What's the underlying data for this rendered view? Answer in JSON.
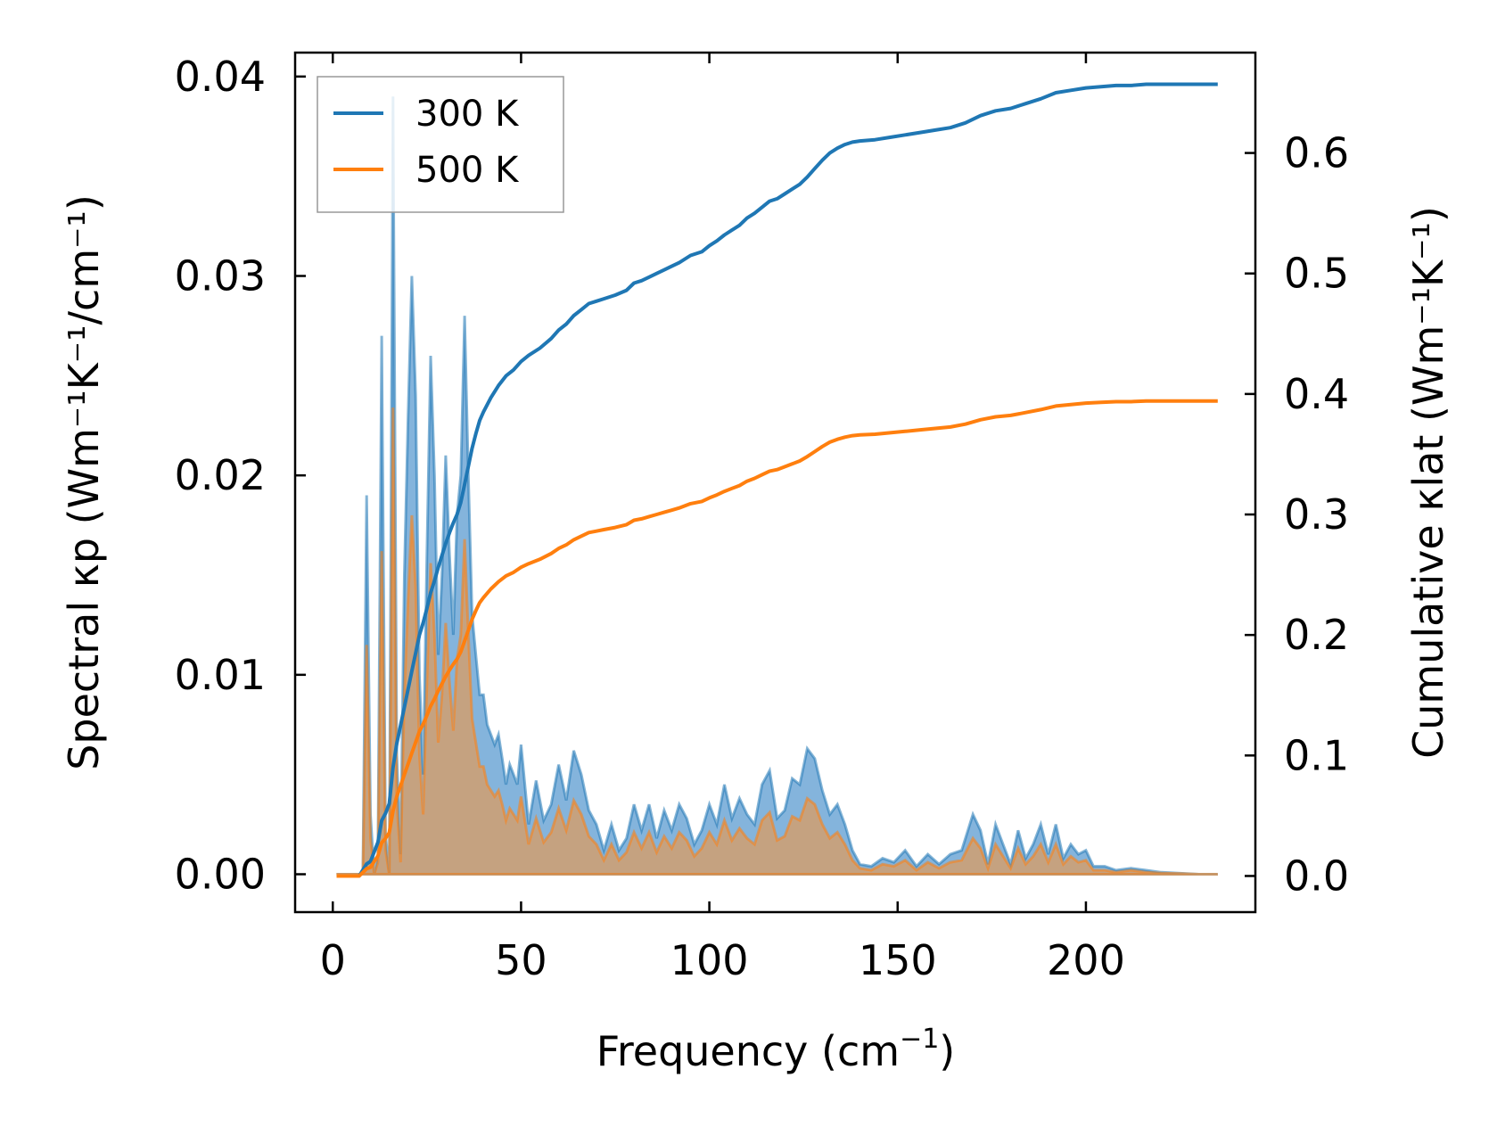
{
  "chart_data": {
    "type": "line",
    "title": "",
    "xlabel": "Frequency (cm⁻¹)",
    "xlabel_parts": {
      "main": "Frequency (cm",
      "sup": "−1",
      "tail": ")"
    },
    "ylabel_left": "Spectral κp (Wm⁻¹K⁻¹/cm⁻¹)",
    "ylabel_right": "Cumulative κlat (Wm⁻¹K⁻¹)",
    "xlim": [
      -10,
      245
    ],
    "ylim_left": [
      -0.0019,
      0.0412
    ],
    "ylim_right": [
      -0.03,
      0.6833
    ],
    "xticks": [
      0,
      50,
      100,
      150,
      200
    ],
    "xtick_labels": [
      "0",
      "50",
      "100",
      "150",
      "200"
    ],
    "yticks_left": [
      0.0,
      0.01,
      0.02,
      0.03,
      0.04
    ],
    "ytick_labels_left": [
      "0.00",
      "0.01",
      "0.02",
      "0.03",
      "0.04"
    ],
    "yticks_right": [
      0.0,
      0.1,
      0.2,
      0.3,
      0.4,
      0.5,
      0.6
    ],
    "ytick_labels_right": [
      "0.0",
      "0.1",
      "0.2",
      "0.3",
      "0.4",
      "0.5",
      "0.6"
    ],
    "legend_position": "top-left",
    "legend": [
      "300 K",
      "500 K"
    ],
    "series": [
      {
        "name": "300 K",
        "color": "#1f77b4",
        "fill_color": "#5b9bd0",
        "spectral": {
          "x": [
            1,
            7,
            8,
            9,
            10,
            11,
            12,
            13,
            14,
            15,
            16,
            17,
            18,
            19,
            20,
            21,
            22,
            23,
            24,
            25,
            26,
            27,
            28,
            29,
            30,
            31,
            32,
            33,
            34,
            35,
            36,
            37,
            38,
            39,
            40,
            41,
            42,
            43,
            44,
            45,
            46,
            47,
            48,
            49,
            50,
            52,
            54,
            56,
            58,
            60,
            62,
            64,
            66,
            68,
            70,
            72,
            74,
            76,
            78,
            80,
            82,
            84,
            86,
            88,
            90,
            92,
            94,
            96,
            98,
            100,
            102,
            104,
            106,
            108,
            110,
            112,
            114,
            116,
            118,
            120,
            122,
            124,
            126,
            128,
            130,
            132,
            134,
            136,
            138,
            140,
            143,
            146,
            149,
            152,
            155,
            158,
            161,
            164,
            167,
            170,
            172,
            174,
            176,
            178,
            180,
            182,
            184,
            186,
            188,
            190,
            192,
            194,
            196,
            198,
            200,
            202,
            205,
            208,
            212,
            216,
            220,
            225,
            230,
            235
          ],
          "y": [
            0,
            0,
            0,
            0.019,
            0.003,
            0.0,
            0.001,
            0.027,
            0.002,
            0.0,
            0.039,
            0.006,
            0.001,
            0.015,
            0.023,
            0.03,
            0.024,
            0.01,
            0.005,
            0.016,
            0.026,
            0.02,
            0.011,
            0.015,
            0.021,
            0.016,
            0.012,
            0.018,
            0.02,
            0.028,
            0.02,
            0.013,
            0.011,
            0.009,
            0.009,
            0.0075,
            0.007,
            0.0065,
            0.007,
            0.0058,
            0.0045,
            0.0055,
            0.005,
            0.0045,
            0.0065,
            0.0025,
            0.0047,
            0.0027,
            0.0035,
            0.0055,
            0.0037,
            0.0062,
            0.005,
            0.0032,
            0.0025,
            0.0012,
            0.0025,
            0.0012,
            0.0018,
            0.0035,
            0.0022,
            0.0035,
            0.0018,
            0.0032,
            0.0022,
            0.0035,
            0.0028,
            0.0015,
            0.0022,
            0.0035,
            0.0025,
            0.0045,
            0.0028,
            0.0038,
            0.003,
            0.0025,
            0.0045,
            0.0052,
            0.0028,
            0.0032,
            0.0048,
            0.0045,
            0.0063,
            0.0058,
            0.0042,
            0.003,
            0.0035,
            0.0025,
            0.0012,
            0.0005,
            0.0004,
            0.0008,
            0.0006,
            0.0012,
            0.0004,
            0.001,
            0.0005,
            0.001,
            0.0012,
            0.003,
            0.0022,
            0.0005,
            0.0025,
            0.0015,
            0.0005,
            0.0022,
            0.0008,
            0.0015,
            0.0025,
            0.001,
            0.0025,
            0.0008,
            0.0015,
            0.001,
            0.0012,
            0.0004,
            0.0004,
            0.0002,
            0.0003,
            0.0002,
            0.0001,
            5e-05,
            0,
            0
          ]
        },
        "cumulative": {
          "x": [
            1,
            7,
            8,
            9,
            10,
            11,
            12,
            13,
            14,
            15,
            16,
            17,
            18,
            19,
            20,
            21,
            22,
            23,
            24,
            25,
            26,
            27,
            28,
            29,
            30,
            31,
            32,
            33,
            34,
            35,
            36,
            37,
            38,
            39,
            40,
            42,
            44,
            46,
            48,
            50,
            52,
            55,
            58,
            60,
            62,
            64,
            66,
            68,
            70,
            72,
            75,
            78,
            80,
            82,
            84,
            86,
            88,
            90,
            92,
            95,
            98,
            100,
            102,
            104,
            106,
            108,
            110,
            112,
            114,
            116,
            118,
            120,
            122,
            124,
            126,
            128,
            130,
            132,
            134,
            136,
            138,
            140,
            144,
            148,
            152,
            156,
            160,
            164,
            168,
            172,
            176,
            180,
            184,
            188,
            192,
            196,
            200,
            204,
            208,
            212,
            216,
            220,
            225,
            230,
            235
          ],
          "y": [
            0,
            0,
            0.005,
            0.01,
            0.012,
            0.02,
            0.028,
            0.046,
            0.052,
            0.06,
            0.09,
            0.11,
            0.125,
            0.14,
            0.155,
            0.17,
            0.185,
            0.2,
            0.21,
            0.222,
            0.235,
            0.245,
            0.256,
            0.266,
            0.276,
            0.285,
            0.293,
            0.3,
            0.31,
            0.325,
            0.34,
            0.355,
            0.367,
            0.378,
            0.385,
            0.397,
            0.407,
            0.415,
            0.42,
            0.427,
            0.432,
            0.438,
            0.446,
            0.453,
            0.458,
            0.465,
            0.47,
            0.475,
            0.477,
            0.479,
            0.482,
            0.486,
            0.492,
            0.494,
            0.497,
            0.5,
            0.503,
            0.506,
            0.509,
            0.515,
            0.518,
            0.523,
            0.527,
            0.532,
            0.536,
            0.54,
            0.546,
            0.55,
            0.555,
            0.56,
            0.562,
            0.566,
            0.57,
            0.574,
            0.58,
            0.587,
            0.594,
            0.6,
            0.604,
            0.607,
            0.609,
            0.61,
            0.611,
            0.613,
            0.615,
            0.617,
            0.619,
            0.621,
            0.625,
            0.631,
            0.635,
            0.637,
            0.641,
            0.645,
            0.65,
            0.652,
            0.654,
            0.655,
            0.656,
            0.656,
            0.657,
            0.657,
            0.657,
            0.657,
            0.657
          ]
        }
      },
      {
        "name": "500 K",
        "color": "#ff7f0e",
        "fill_color": "#e8984f",
        "spectral": {
          "x": [
            1,
            7,
            8,
            9,
            10,
            11,
            12,
            13,
            14,
            15,
            16,
            17,
            18,
            19,
            20,
            21,
            22,
            23,
            24,
            25,
            26,
            27,
            28,
            29,
            30,
            31,
            32,
            33,
            34,
            35,
            36,
            37,
            38,
            39,
            40,
            41,
            42,
            43,
            44,
            45,
            46,
            47,
            48,
            49,
            50,
            52,
            54,
            56,
            58,
            60,
            62,
            64,
            66,
            68,
            70,
            72,
            74,
            76,
            78,
            80,
            82,
            84,
            86,
            88,
            90,
            92,
            94,
            96,
            98,
            100,
            102,
            104,
            106,
            108,
            110,
            112,
            114,
            116,
            118,
            120,
            122,
            124,
            126,
            128,
            130,
            132,
            134,
            136,
            138,
            140,
            143,
            146,
            149,
            152,
            155,
            158,
            161,
            164,
            167,
            170,
            172,
            174,
            176,
            178,
            180,
            182,
            184,
            186,
            188,
            190,
            192,
            194,
            196,
            198,
            200,
            202,
            205,
            208,
            212,
            216,
            220,
            225,
            230,
            235
          ],
          "y": [
            0,
            0,
            0,
            0.0115,
            0.0018,
            0.0,
            0.0006,
            0.0162,
            0.0012,
            0.0,
            0.0234,
            0.0036,
            0.0006,
            0.009,
            0.0138,
            0.018,
            0.0144,
            0.006,
            0.003,
            0.0096,
            0.0156,
            0.012,
            0.0066,
            0.009,
            0.0126,
            0.0096,
            0.0072,
            0.0108,
            0.012,
            0.0168,
            0.012,
            0.0078,
            0.0066,
            0.0054,
            0.0054,
            0.0045,
            0.0042,
            0.0039,
            0.0042,
            0.0035,
            0.0027,
            0.0033,
            0.003,
            0.0027,
            0.0039,
            0.0015,
            0.0028,
            0.0016,
            0.0021,
            0.0033,
            0.0022,
            0.0037,
            0.003,
            0.0019,
            0.0015,
            0.0007,
            0.0015,
            0.0007,
            0.0011,
            0.0021,
            0.0013,
            0.0021,
            0.0011,
            0.0019,
            0.0013,
            0.0021,
            0.0017,
            0.0009,
            0.0013,
            0.0021,
            0.0015,
            0.0027,
            0.0017,
            0.0023,
            0.0018,
            0.0015,
            0.0027,
            0.0031,
            0.0017,
            0.0019,
            0.0029,
            0.0027,
            0.0038,
            0.0035,
            0.0025,
            0.0018,
            0.0021,
            0.0015,
            0.0007,
            0.0003,
            0.0002,
            0.0005,
            0.0004,
            0.0007,
            0.0002,
            0.0006,
            0.0003,
            0.0006,
            0.0007,
            0.0018,
            0.0013,
            0.0003,
            0.0015,
            0.0009,
            0.0003,
            0.0013,
            0.0005,
            0.0009,
            0.0015,
            0.0006,
            0.0015,
            0.0005,
            0.0009,
            0.0006,
            0.0007,
            0.0002,
            0.0002,
            0.0001,
            0.0002,
            0.0001,
            6e-05,
            3e-05,
            0,
            0
          ]
        },
        "cumulative": {
          "x": [
            1,
            7,
            8,
            9,
            10,
            11,
            12,
            13,
            14,
            15,
            16,
            17,
            18,
            19,
            20,
            21,
            22,
            23,
            24,
            25,
            26,
            27,
            28,
            29,
            30,
            31,
            32,
            33,
            34,
            35,
            36,
            37,
            38,
            39,
            40,
            42,
            44,
            46,
            48,
            50,
            52,
            55,
            58,
            60,
            62,
            64,
            66,
            68,
            70,
            72,
            75,
            78,
            80,
            82,
            84,
            86,
            88,
            90,
            92,
            95,
            98,
            100,
            102,
            104,
            106,
            108,
            110,
            112,
            114,
            116,
            118,
            120,
            122,
            124,
            126,
            128,
            130,
            132,
            134,
            136,
            138,
            140,
            144,
            148,
            152,
            156,
            160,
            164,
            168,
            172,
            176,
            180,
            184,
            188,
            192,
            196,
            200,
            204,
            208,
            212,
            216,
            220,
            225,
            230,
            235
          ],
          "y": [
            0,
            0,
            0.003,
            0.006,
            0.0072,
            0.012,
            0.0168,
            0.0276,
            0.0312,
            0.036,
            0.054,
            0.066,
            0.075,
            0.084,
            0.093,
            0.102,
            0.111,
            0.12,
            0.126,
            0.1332,
            0.141,
            0.147,
            0.1536,
            0.1596,
            0.1656,
            0.171,
            0.1758,
            0.18,
            0.186,
            0.195,
            0.204,
            0.213,
            0.2202,
            0.2268,
            0.231,
            0.2382,
            0.2442,
            0.249,
            0.252,
            0.2562,
            0.2592,
            0.2628,
            0.2676,
            0.2718,
            0.2748,
            0.279,
            0.282,
            0.285,
            0.2862,
            0.2874,
            0.2892,
            0.2916,
            0.2952,
            0.2964,
            0.2982,
            0.3,
            0.3018,
            0.3036,
            0.3054,
            0.309,
            0.3108,
            0.3138,
            0.3162,
            0.3192,
            0.3216,
            0.324,
            0.3276,
            0.33,
            0.333,
            0.336,
            0.3372,
            0.3396,
            0.342,
            0.3444,
            0.348,
            0.3522,
            0.3564,
            0.36,
            0.3624,
            0.3642,
            0.3654,
            0.366,
            0.3666,
            0.3678,
            0.369,
            0.3702,
            0.3714,
            0.3726,
            0.375,
            0.3786,
            0.381,
            0.3822,
            0.3846,
            0.387,
            0.39,
            0.3912,
            0.3924,
            0.393,
            0.3936,
            0.3936,
            0.3942,
            0.3942,
            0.3942,
            0.3942,
            0.3942
          ]
        }
      }
    ]
  }
}
